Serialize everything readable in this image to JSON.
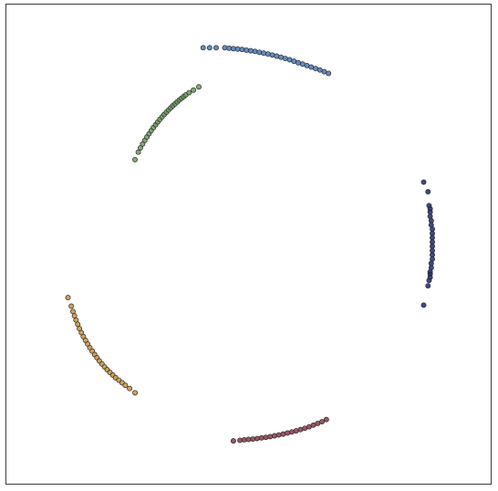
{
  "chart_data": {
    "type": "scatter",
    "title": "",
    "xlabel": "",
    "ylabel": "",
    "xlim": [
      -1.12,
      1.12
    ],
    "ylim": [
      -1.12,
      1.12
    ],
    "grid": false,
    "axes_visible": false,
    "series": [
      {
        "color": "#4a78b6",
        "x": [
          -0.21,
          -0.18,
          -0.15,
          -0.11,
          -0.09,
          -0.07,
          -0.05,
          -0.03,
          -0.01,
          0.01,
          0.03,
          0.05,
          0.07,
          0.09,
          0.11,
          0.13,
          0.15,
          0.17,
          0.19,
          0.21,
          0.23,
          0.25,
          0.27,
          0.29,
          0.31,
          0.33,
          0.35,
          0.37
        ],
        "y": [
          0.918,
          0.918,
          0.918,
          0.918,
          0.916,
          0.914,
          0.912,
          0.91,
          0.907,
          0.904,
          0.901,
          0.897,
          0.893,
          0.889,
          0.884,
          0.879,
          0.874,
          0.868,
          0.862,
          0.855,
          0.848,
          0.842,
          0.835,
          0.828,
          0.821,
          0.814,
          0.806,
          0.798
        ]
      },
      {
        "color": "#1f2a6e",
        "x": [
          0.81,
          0.83,
          0.835,
          0.84,
          0.84,
          0.84,
          0.845,
          0.845,
          0.85,
          0.85,
          0.85,
          0.85,
          0.85,
          0.85,
          0.85,
          0.85,
          0.845,
          0.845,
          0.84,
          0.84,
          0.84,
          0.835,
          0.83,
          0.81
        ],
        "y": [
          0.29,
          0.245,
          0.18,
          0.165,
          0.15,
          0.13,
          0.11,
          0.09,
          0.07,
          0.05,
          0.03,
          0.01,
          -0.01,
          -0.03,
          -0.05,
          -0.07,
          -0.09,
          -0.11,
          -0.13,
          -0.14,
          -0.155,
          -0.17,
          -0.195,
          -0.285
        ]
      },
      {
        "color": "#8a3a46",
        "x": [
          -0.07,
          -0.04,
          -0.02,
          0.0,
          0.02,
          0.04,
          0.06,
          0.08,
          0.1,
          0.12,
          0.14,
          0.16,
          0.18,
          0.2,
          0.22,
          0.24,
          0.26,
          0.28,
          0.3,
          0.32,
          0.34,
          0.36
        ],
        "y": [
          -0.92,
          -0.917,
          -0.915,
          -0.913,
          -0.911,
          -0.909,
          -0.906,
          -0.903,
          -0.9,
          -0.896,
          -0.892,
          -0.888,
          -0.883,
          -0.878,
          -0.873,
          -0.867,
          -0.861,
          -0.854,
          -0.846,
          -0.838,
          -0.83,
          -0.82
        ]
      },
      {
        "color": "#c89040",
        "x": [
          -0.835,
          -0.82,
          -0.812,
          -0.805,
          -0.798,
          -0.79,
          -0.782,
          -0.773,
          -0.764,
          -0.754,
          -0.744,
          -0.734,
          -0.723,
          -0.712,
          -0.701,
          -0.69,
          -0.678,
          -0.666,
          -0.654,
          -0.641,
          -0.628,
          -0.615,
          -0.6,
          -0.585,
          -0.57,
          -0.55,
          -0.525
        ],
        "y": [
          -0.25,
          -0.29,
          -0.315,
          -0.335,
          -0.355,
          -0.375,
          -0.395,
          -0.414,
          -0.432,
          -0.45,
          -0.467,
          -0.484,
          -0.5,
          -0.516,
          -0.531,
          -0.546,
          -0.56,
          -0.574,
          -0.587,
          -0.6,
          -0.612,
          -0.624,
          -0.636,
          -0.648,
          -0.66,
          -0.675,
          -0.695
        ]
      },
      {
        "color": "#6a9a58",
        "x": [
          -0.525,
          -0.51,
          -0.5,
          -0.49,
          -0.48,
          -0.47,
          -0.46,
          -0.45,
          -0.44,
          -0.43,
          -0.42,
          -0.41,
          -0.4,
          -0.39,
          -0.38,
          -0.37,
          -0.36,
          -0.35,
          -0.34,
          -0.33,
          -0.32,
          -0.31,
          -0.3,
          -0.29,
          -0.275,
          -0.255,
          -0.23
        ],
        "y": [
          0.395,
          0.43,
          0.45,
          0.468,
          0.485,
          0.501,
          0.516,
          0.531,
          0.545,
          0.558,
          0.571,
          0.583,
          0.595,
          0.606,
          0.617,
          0.627,
          0.637,
          0.647,
          0.656,
          0.665,
          0.674,
          0.682,
          0.69,
          0.698,
          0.708,
          0.72,
          0.735
        ]
      }
    ]
  }
}
